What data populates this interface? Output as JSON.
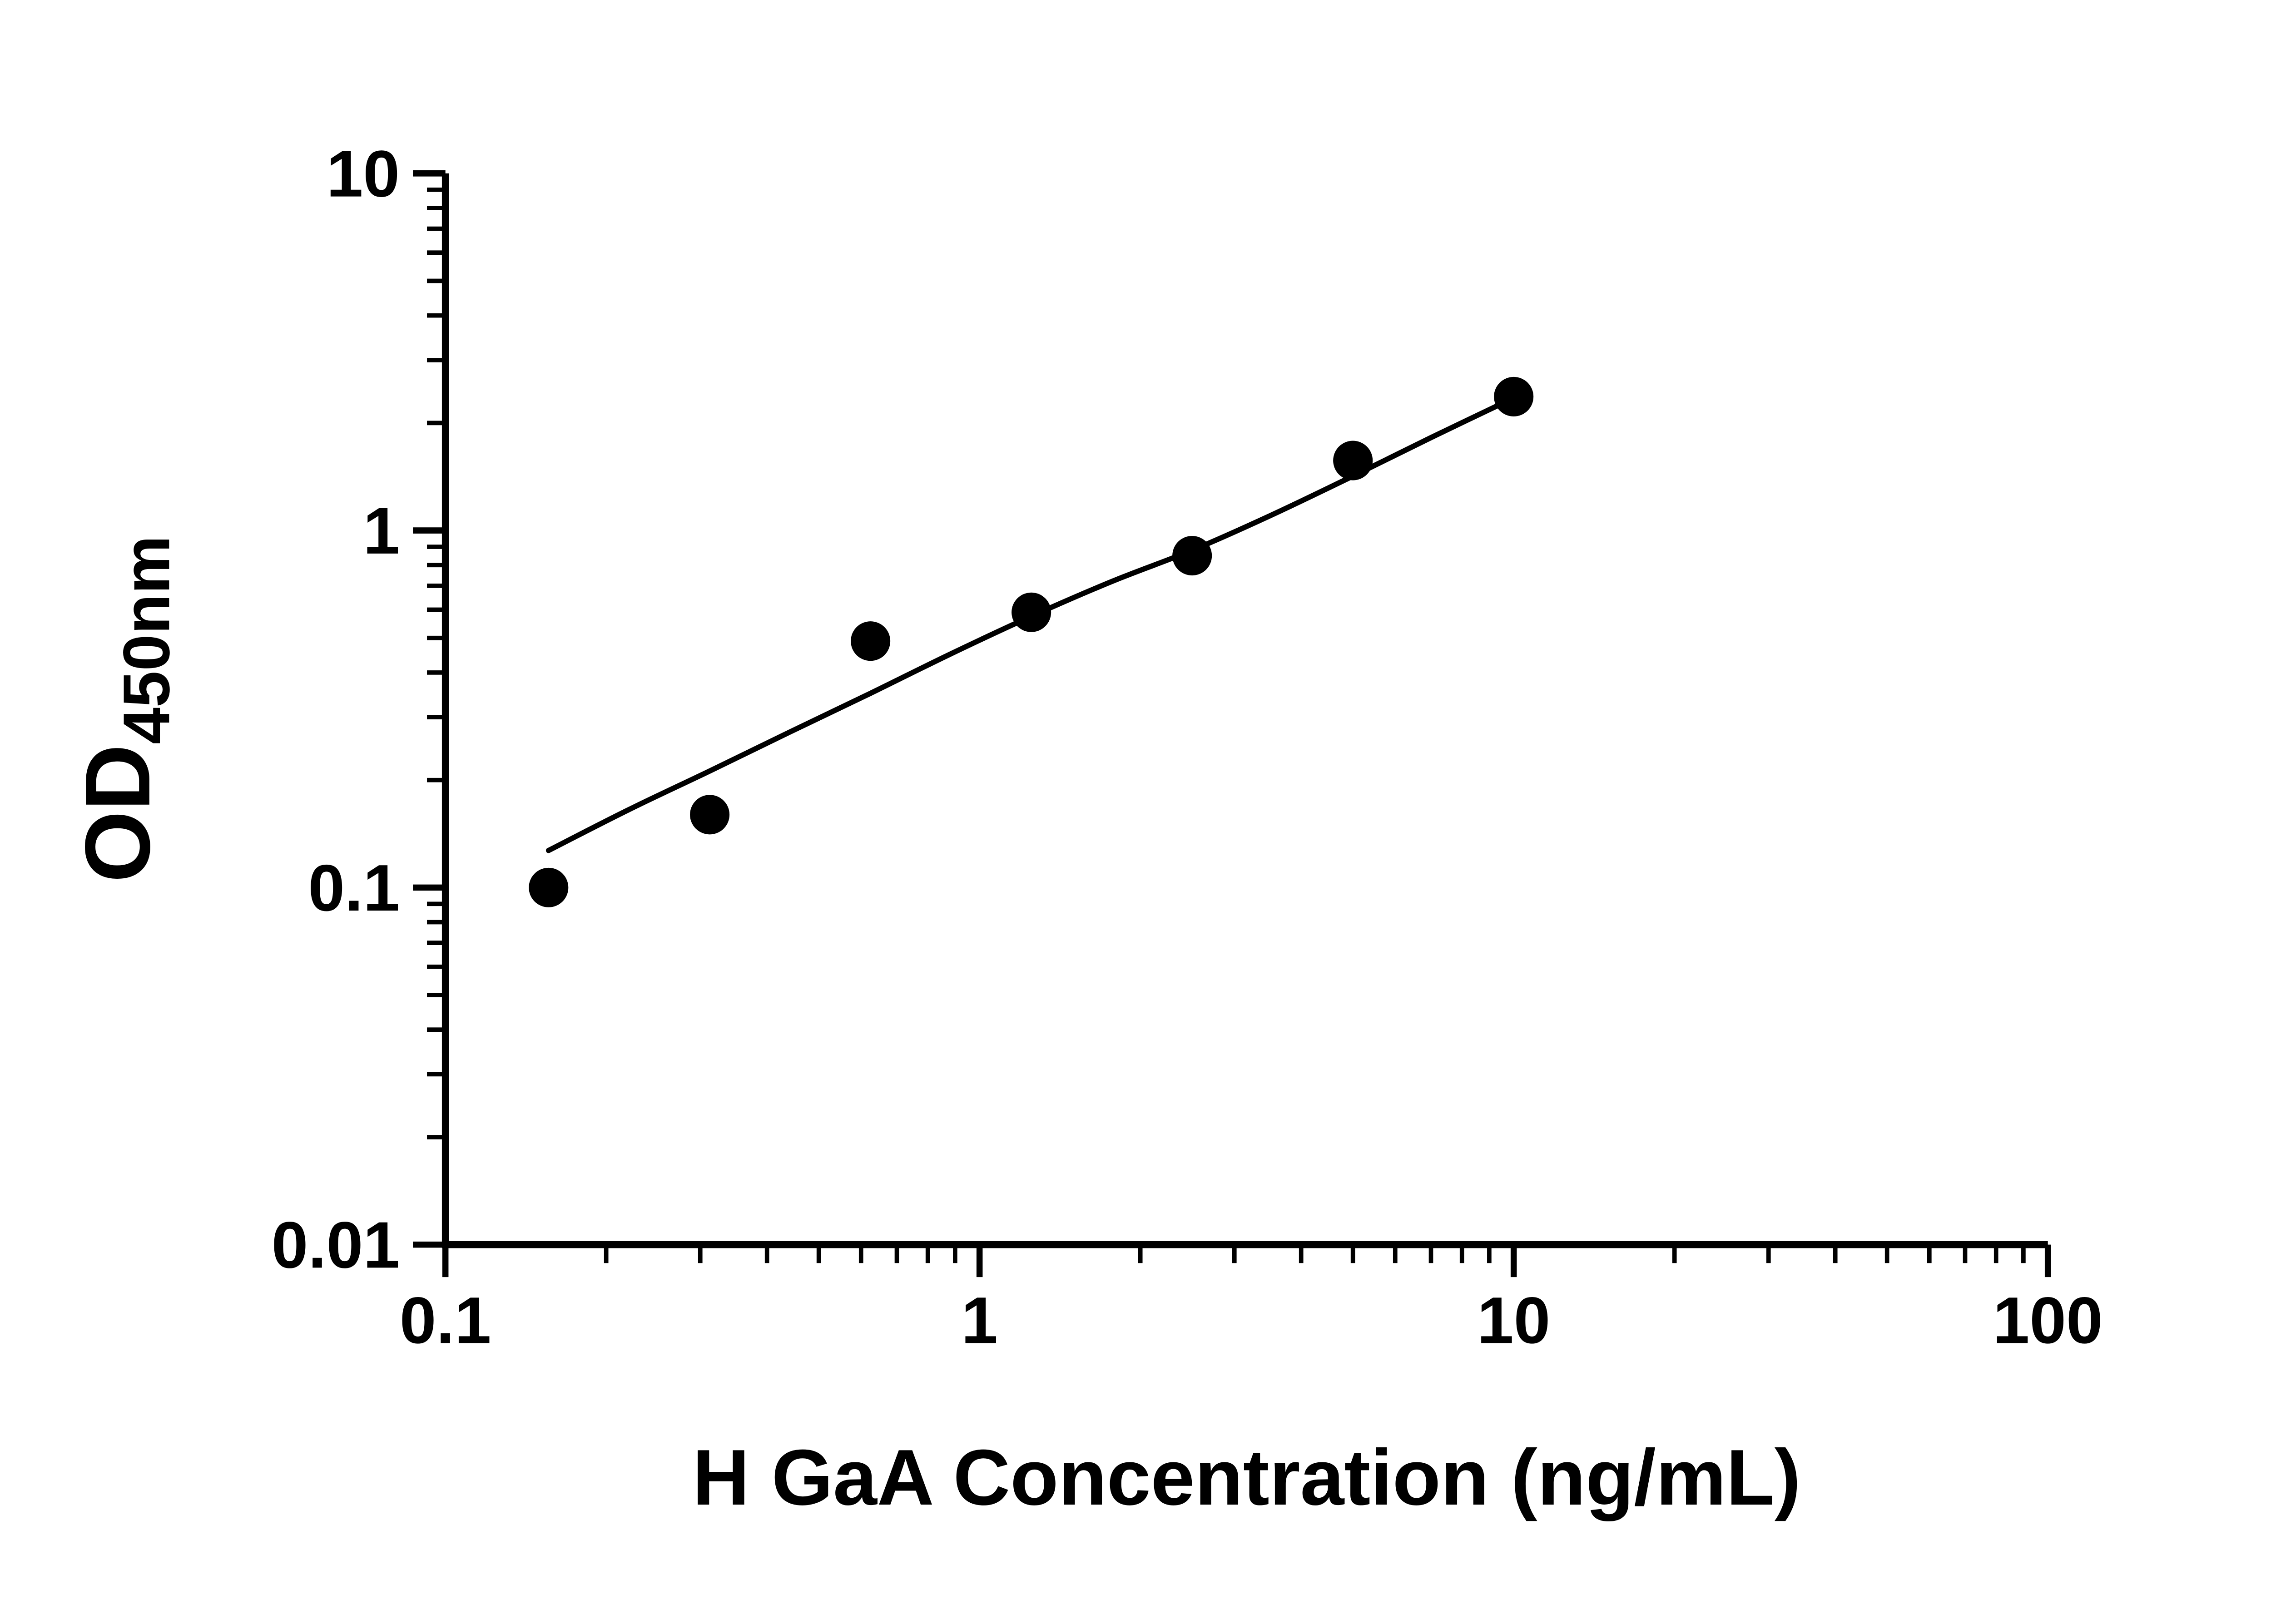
{
  "figure": {
    "background": "#ffffff",
    "foreground": "#000000"
  },
  "chart_data": {
    "type": "scatter",
    "title": "",
    "xlabel": "H GaA Concentration (ng/mL)",
    "ylabel_main": "OD",
    "ylabel_subscript": "450nm",
    "x_scale": "log",
    "y_scale": "log",
    "xlim": [
      0.1,
      100
    ],
    "ylim": [
      0.01,
      10
    ],
    "grid": false,
    "legend": false,
    "log_minor_ticks": true,
    "x_ticks": [
      {
        "value": 0.1,
        "label": "0.1"
      },
      {
        "value": 1,
        "label": "1"
      },
      {
        "value": 10,
        "label": "10"
      },
      {
        "value": 100,
        "label": "100"
      }
    ],
    "y_ticks": [
      {
        "value": 0.01,
        "label": "0.01"
      },
      {
        "value": 0.1,
        "label": "0.1"
      },
      {
        "value": 1,
        "label": "1"
      },
      {
        "value": 10,
        "label": "10"
      }
    ],
    "series": [
      {
        "marker": "circle",
        "color": "#000000",
        "points": [
          {
            "x": 0.156,
            "y": 0.1
          },
          {
            "x": 0.3125,
            "y": 0.16
          },
          {
            "x": 0.625,
            "y": 0.49
          },
          {
            "x": 1.25,
            "y": 0.59
          },
          {
            "x": 2.5,
            "y": 0.85
          },
          {
            "x": 5,
            "y": 1.57
          },
          {
            "x": 10,
            "y": 2.37
          }
        ]
      }
    ],
    "fit_curve": {
      "color": "#000000",
      "points": [
        [
          0.156,
          0.127
        ],
        [
          0.22,
          0.165
        ],
        [
          0.3125,
          0.212
        ],
        [
          0.44,
          0.272
        ],
        [
          0.625,
          0.35
        ],
        [
          0.88,
          0.45
        ],
        [
          1.25,
          0.575
        ],
        [
          1.77,
          0.72
        ],
        [
          2.5,
          0.88
        ],
        [
          3.5,
          1.1
        ],
        [
          5,
          1.42
        ],
        [
          7,
          1.82
        ],
        [
          10,
          2.35
        ]
      ]
    }
  }
}
